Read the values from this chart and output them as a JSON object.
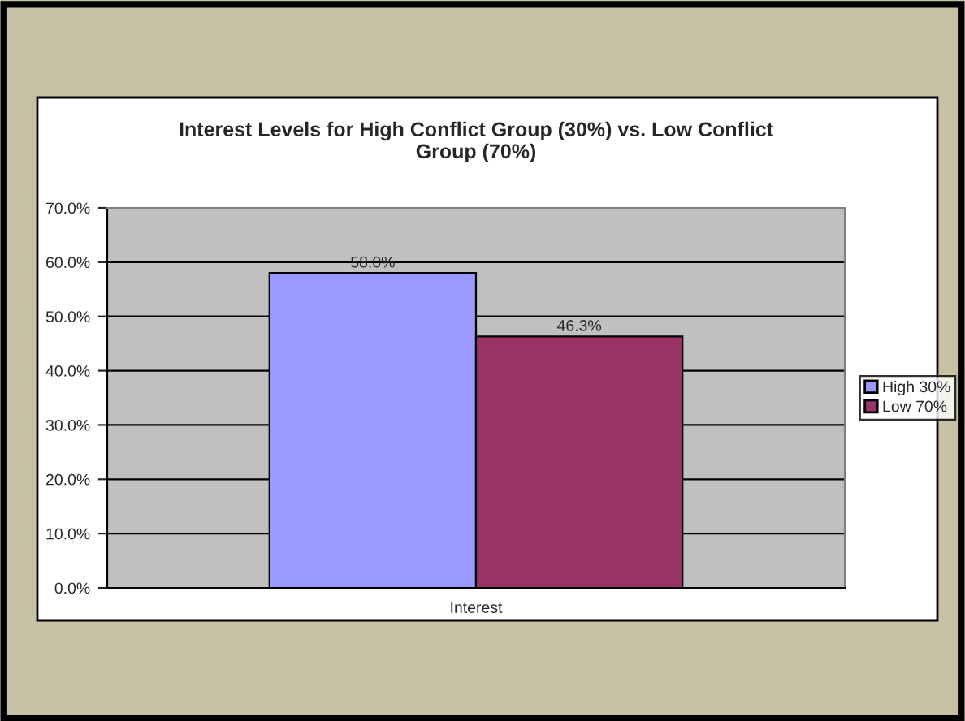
{
  "chart_data": {
    "type": "bar",
    "title": "Interest Levels for High Conflict Group (30%) vs. Low Conflict\nGroup (70%)",
    "categories": [
      "Interest"
    ],
    "series": [
      {
        "name": "High 30%",
        "color": "#9999ff",
        "values": [
          58.0
        ],
        "value_labels": [
          "58.0%"
        ]
      },
      {
        "name": "Low 70%",
        "color": "#993366",
        "values": [
          46.3
        ],
        "value_labels": [
          "46.3%"
        ]
      }
    ],
    "ylim": [
      0,
      70
    ],
    "yticks": [
      {
        "value": 0,
        "label": "0.0%"
      },
      {
        "value": 10,
        "label": "10.0%"
      },
      {
        "value": 20,
        "label": "20.0%"
      },
      {
        "value": 30,
        "label": "30.0%"
      },
      {
        "value": 40,
        "label": "40.0%"
      },
      {
        "value": 50,
        "label": "50.0%"
      },
      {
        "value": 60,
        "label": "60.0%"
      },
      {
        "value": 70,
        "label": "70.0%"
      }
    ],
    "grid": "y",
    "legend": "right"
  }
}
